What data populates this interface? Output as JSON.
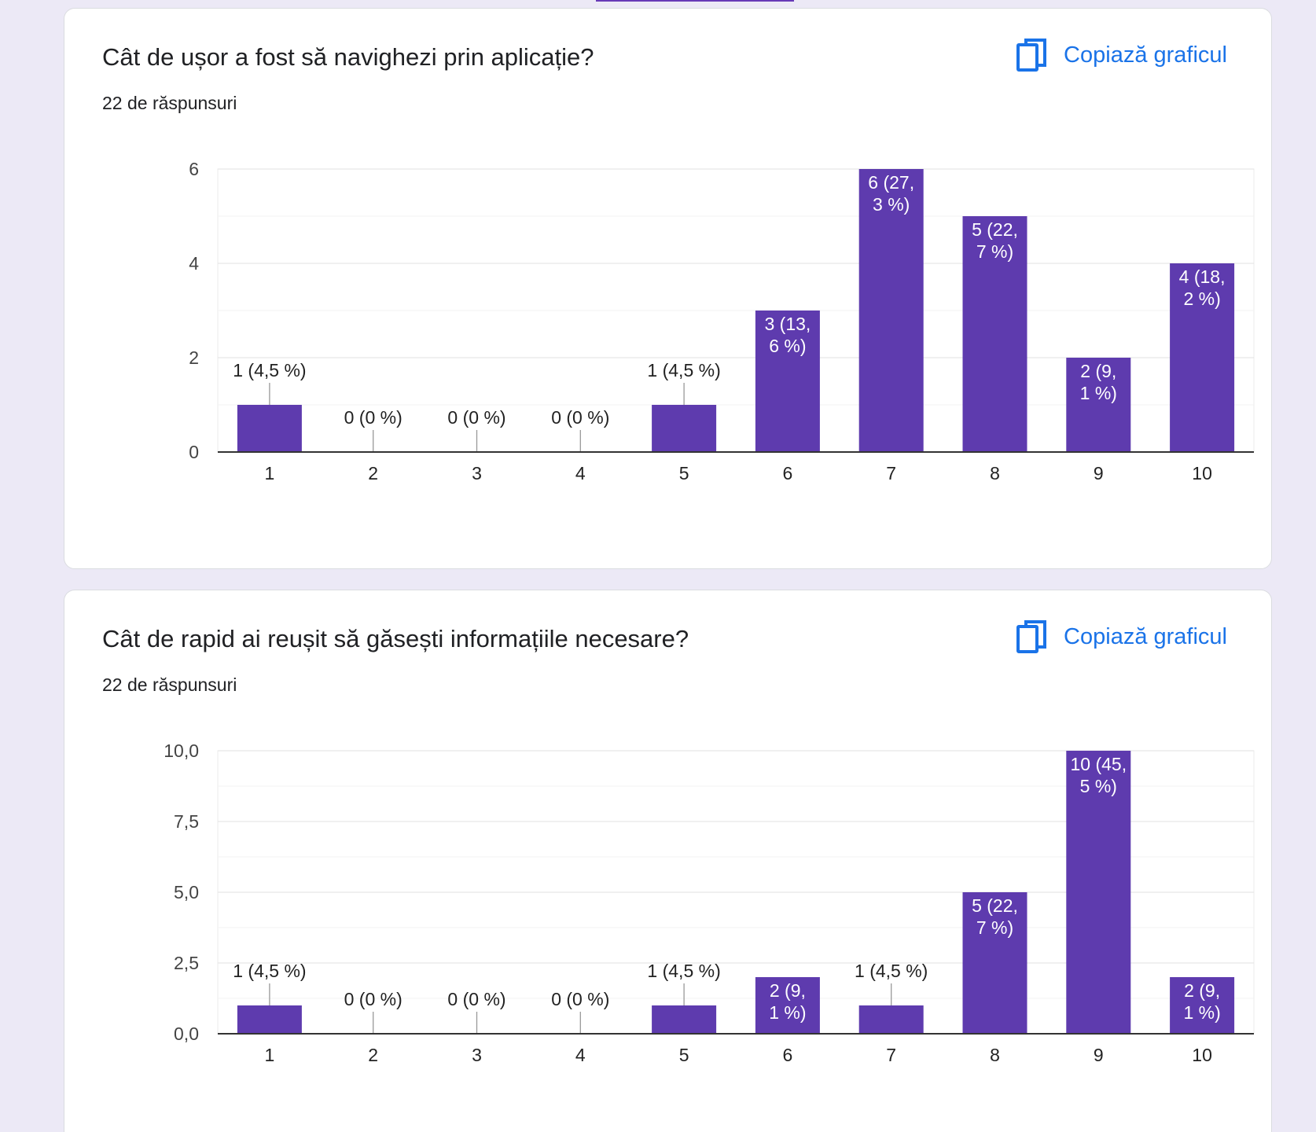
{
  "colors": {
    "bar": "#5e3bae",
    "accent": "#673ab7",
    "link": "#1a73e8"
  },
  "questions": [
    {
      "title": "Cât de ușor a fost să navighezi prin aplicație?",
      "responses": "22 de răspunsuri",
      "copy_label": "Copiază graficul",
      "copy_icon": "copy-icon"
    },
    {
      "title": "Cât de rapid ai reușit să găsești informațiile necesare?",
      "responses": "22 de răspunsuri",
      "copy_label": "Copiază graficul",
      "copy_icon": "copy-icon"
    }
  ],
  "chart_data": [
    {
      "type": "bar",
      "categories": [
        "1",
        "2",
        "3",
        "4",
        "5",
        "6",
        "7",
        "8",
        "9",
        "10"
      ],
      "values": [
        1,
        0,
        0,
        0,
        1,
        3,
        6,
        5,
        2,
        4
      ],
      "labels": [
        "1 (4,5 %)",
        "0 (0 %)",
        "0 (0 %)",
        "0 (0 %)",
        "1 (4,5 %)",
        "3 (13,\n6 %)",
        "6 (27,\n3 %)",
        "5 (22,\n7 %)",
        "2 (9,\n1 %)",
        "4 (18,\n2 %)"
      ],
      "ylim": [
        0,
        6
      ],
      "yticks": [
        0,
        2,
        4,
        6
      ],
      "ytick_labels": [
        "0",
        "2",
        "4",
        "6"
      ],
      "grid": true
    },
    {
      "type": "bar",
      "categories": [
        "1",
        "2",
        "3",
        "4",
        "5",
        "6",
        "7",
        "8",
        "9",
        "10"
      ],
      "values": [
        1,
        0,
        0,
        0,
        1,
        2,
        1,
        5,
        10,
        2
      ],
      "labels": [
        "1 (4,5 %)",
        "0 (0 %)",
        "0 (0 %)",
        "0 (0 %)",
        "1 (4,5 %)",
        "2 (9,\n1 %)",
        "1 (4,5 %)",
        "5 (22,\n7 %)",
        "10 (45,\n5 %)",
        "2 (9,\n1 %)"
      ],
      "ylim": [
        0,
        10
      ],
      "yticks": [
        0,
        2.5,
        5,
        7.5,
        10
      ],
      "ytick_labels": [
        "0,0",
        "2,5",
        "5,0",
        "7,5",
        "10,0"
      ],
      "grid": true
    }
  ]
}
